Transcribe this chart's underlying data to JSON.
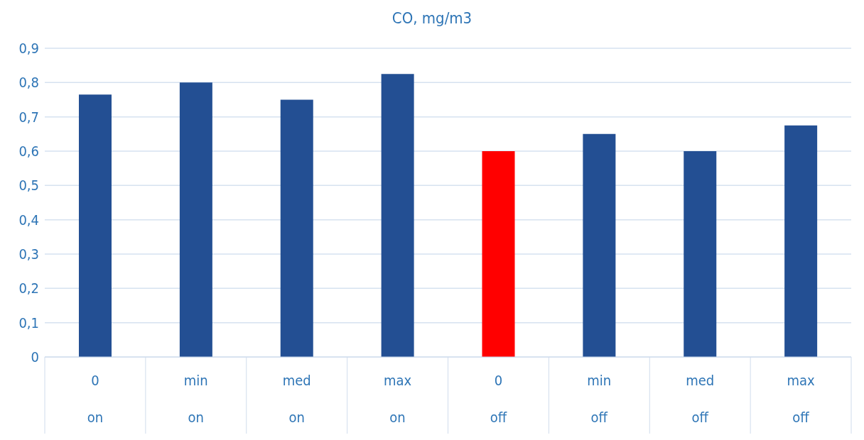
{
  "chart_data": {
    "type": "bar",
    "title": "CO, mg/m3",
    "categories": [
      "0\non",
      "min\non",
      "med\non",
      "max\non",
      "0\noff",
      "min\noff",
      "med\noff",
      "max\noff"
    ],
    "values": [
      0.765,
      0.8,
      0.75,
      0.825,
      0.6,
      0.65,
      0.6,
      0.675
    ],
    "colors": [
      "#234f93",
      "#234f93",
      "#234f93",
      "#234f93",
      "#ff0000",
      "#234f93",
      "#234f93",
      "#234f93"
    ],
    "ylim": [
      0,
      0.9
    ],
    "yticks": [
      0,
      {
        "value": 0.1,
        "label": "0,1"
      },
      {
        "value": 0.2,
        "label": "0,2"
      },
      {
        "value": 0.3,
        "label": "0,3"
      },
      {
        "value": 0.4,
        "label": "0,4"
      },
      {
        "value": 0.5,
        "label": "0,5"
      },
      {
        "value": 0.6,
        "label": "0,6"
      },
      {
        "value": 0.7,
        "label": "0,7"
      },
      {
        "value": 0.8,
        "label": "0,8"
      },
      {
        "value": 0.9,
        "label": "0,9"
      }
    ],
    "grid": "y",
    "legend": false
  }
}
